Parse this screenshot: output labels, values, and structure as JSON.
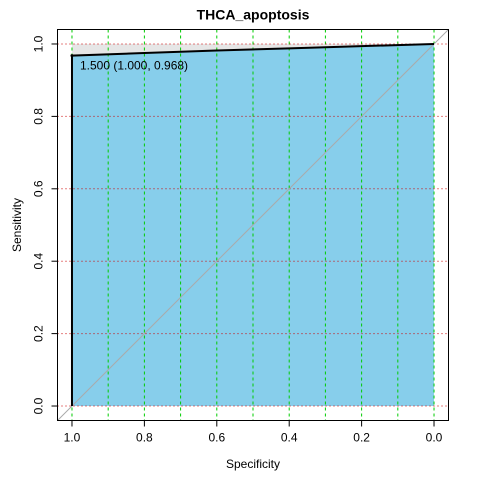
{
  "chart_data": {
    "type": "roc",
    "title": "THCA_apoptosis",
    "xlabel": "Specificity",
    "ylabel": "Sensitivity",
    "x": [
      1.0,
      1.0,
      0.8,
      0.6,
      0.4,
      0.2,
      0.0
    ],
    "values": [
      0.0,
      0.968,
      0.975,
      0.982,
      0.988,
      0.994,
      1.0
    ],
    "color": "#000000",
    "fill": "#87ceeb",
    "max_fill": "#e6e6e6",
    "xlim": [
      1.04,
      -0.04
    ],
    "ylim": [
      -0.04,
      1.04
    ],
    "xticks": [
      {
        "value": 1.0,
        "label": "1.0"
      },
      {
        "value": 0.8,
        "label": "0.8"
      },
      {
        "value": 0.6,
        "label": "0.6"
      },
      {
        "value": 0.4,
        "label": "0.4"
      },
      {
        "value": 0.2,
        "label": "0.2"
      },
      {
        "value": 0.0,
        "label": "0.0"
      }
    ],
    "yticks": [
      {
        "value": 0.0,
        "label": "0.0"
      },
      {
        "value": 0.2,
        "label": "0.2"
      },
      {
        "value": 0.4,
        "label": "0.4"
      },
      {
        "value": 0.6,
        "label": "0.6"
      },
      {
        "value": 0.8,
        "label": "0.8"
      },
      {
        "value": 1.0,
        "label": "1.0"
      }
    ],
    "grid_x": [
      0.0,
      0.1,
      0.2,
      0.3,
      0.4,
      0.5,
      0.6,
      0.7,
      0.8,
      0.9,
      1.0
    ],
    "grid_x_color": "#00cc00",
    "grid_y": [
      0.0,
      0.2,
      0.4,
      0.6,
      0.8,
      1.0
    ],
    "grid_y_color": "#cc0000",
    "threshold": {
      "specificity": 1.0,
      "sensitivity": 0.968,
      "label": "1.500 (1.000, 0.968)"
    }
  }
}
